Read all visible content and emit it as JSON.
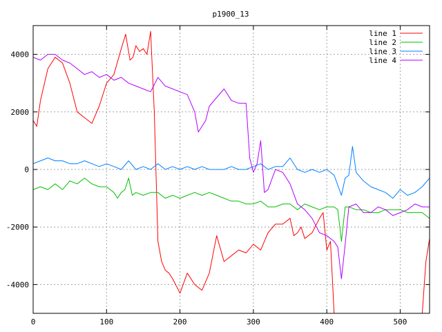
{
  "chart_data": {
    "type": "line",
    "title": "p1900_13",
    "xlabel": "",
    "ylabel": "",
    "xlim": [
      0,
      540
    ],
    "ylim": [
      -5000,
      5000
    ],
    "xticks": [
      0,
      100,
      200,
      300,
      400,
      500
    ],
    "yticks": [
      -4000,
      -2000,
      0,
      2000,
      4000
    ],
    "grid": true,
    "legend_position": "top-right",
    "series": [
      {
        "name": "line 1",
        "color": "#ff0000",
        "x": [
          0,
          5,
          10,
          20,
          30,
          40,
          50,
          60,
          70,
          80,
          90,
          100,
          110,
          120,
          126,
          132,
          136,
          140,
          145,
          150,
          155,
          160,
          165,
          170,
          175,
          180,
          185,
          190,
          200,
          210,
          220,
          230,
          240,
          250,
          260,
          270,
          280,
          290,
          300,
          310,
          320,
          330,
          340,
          350,
          355,
          360,
          365,
          370,
          380,
          390,
          395,
          400,
          405,
          410,
          420,
          430,
          440,
          450,
          460,
          470,
          480,
          490,
          500,
          510,
          520,
          530,
          535,
          540
        ],
        "y": [
          1700,
          1500,
          2400,
          3500,
          3900,
          3700,
          3000,
          2000,
          1800,
          1600,
          2200,
          3000,
          3300,
          4200,
          4700,
          3800,
          3900,
          4300,
          4100,
          4200,
          4000,
          4800,
          2000,
          -2500,
          -3200,
          -3500,
          -3600,
          -3800,
          -4300,
          -3600,
          -4000,
          -4200,
          -3600,
          -2300,
          -3200,
          -3000,
          -2800,
          -2900,
          -2600,
          -2800,
          -2200,
          -1900,
          -1900,
          -1700,
          -2300,
          -2200,
          -2000,
          -2400,
          -2200,
          -1700,
          -1500,
          -2800,
          -2500,
          -5000,
          -5000,
          -5000,
          -5000,
          -5000,
          -5000,
          -5000,
          -5000,
          -5000,
          -5000,
          -5000,
          -5000,
          -5000,
          -3200,
          -2400
        ]
      },
      {
        "name": "line 2",
        "color": "#00c000",
        "x": [
          0,
          10,
          20,
          30,
          40,
          50,
          60,
          70,
          80,
          90,
          100,
          110,
          115,
          120,
          125,
          130,
          135,
          140,
          150,
          160,
          170,
          180,
          190,
          200,
          210,
          220,
          230,
          240,
          250,
          260,
          270,
          280,
          290,
          300,
          310,
          320,
          330,
          340,
          350,
          360,
          370,
          380,
          390,
          400,
          410,
          415,
          420,
          425,
          430,
          440,
          450,
          460,
          470,
          480,
          490,
          500,
          510,
          520,
          530,
          540
        ],
        "y": [
          -700,
          -600,
          -700,
          -500,
          -700,
          -400,
          -500,
          -300,
          -500,
          -600,
          -600,
          -800,
          -1000,
          -800,
          -700,
          -300,
          -900,
          -800,
          -900,
          -800,
          -800,
          -1000,
          -900,
          -1000,
          -900,
          -800,
          -900,
          -800,
          -900,
          -1000,
          -1100,
          -1100,
          -1200,
          -1200,
          -1100,
          -1300,
          -1300,
          -1200,
          -1200,
          -1400,
          -1200,
          -1300,
          -1400,
          -1300,
          -1300,
          -1400,
          -2500,
          -1300,
          -1300,
          -1400,
          -1400,
          -1500,
          -1500,
          -1400,
          -1400,
          -1400,
          -1500,
          -1500,
          -1500,
          -1700
        ]
      },
      {
        "name": "line 3",
        "color": "#0080ff",
        "x": [
          0,
          10,
          20,
          30,
          40,
          50,
          60,
          70,
          80,
          90,
          100,
          110,
          120,
          130,
          140,
          150,
          160,
          170,
          180,
          190,
          200,
          210,
          220,
          230,
          240,
          250,
          260,
          270,
          280,
          290,
          300,
          310,
          320,
          330,
          340,
          350,
          360,
          370,
          380,
          390,
          400,
          410,
          420,
          425,
          430,
          435,
          440,
          450,
          460,
          470,
          480,
          490,
          500,
          510,
          520,
          530,
          540
        ],
        "y": [
          200,
          300,
          400,
          300,
          300,
          200,
          200,
          300,
          200,
          100,
          200,
          100,
          0,
          300,
          0,
          100,
          0,
          200,
          0,
          100,
          0,
          100,
          0,
          100,
          0,
          0,
          0,
          100,
          0,
          0,
          100,
          200,
          0,
          100,
          100,
          400,
          0,
          -100,
          0,
          -100,
          0,
          -200,
          -900,
          -300,
          -200,
          800,
          -100,
          -400,
          -600,
          -700,
          -800,
          -1000,
          -700,
          -900,
          -800,
          -600,
          -300
        ]
      },
      {
        "name": "line 4",
        "color": "#b000ff",
        "x": [
          0,
          10,
          20,
          30,
          40,
          50,
          60,
          70,
          80,
          90,
          100,
          110,
          120,
          130,
          140,
          150,
          160,
          170,
          180,
          190,
          200,
          210,
          220,
          225,
          230,
          235,
          240,
          250,
          260,
          270,
          280,
          290,
          295,
          300,
          305,
          310,
          315,
          320,
          330,
          340,
          350,
          360,
          370,
          380,
          390,
          400,
          410,
          415,
          420,
          425,
          430,
          440,
          450,
          460,
          470,
          480,
          490,
          500,
          510,
          520,
          530,
          540
        ],
        "y": [
          3900,
          3800,
          4000,
          4000,
          3800,
          3700,
          3500,
          3300,
          3400,
          3200,
          3300,
          3100,
          3200,
          3000,
          2900,
          2800,
          2700,
          3200,
          2900,
          2800,
          2700,
          2600,
          2000,
          1300,
          1500,
          1700,
          2200,
          2500,
          2800,
          2400,
          2300,
          2300,
          400,
          -100,
          200,
          1000,
          -800,
          -700,
          0,
          -100,
          -500,
          -1200,
          -1400,
          -1700,
          -2200,
          -2300,
          -2500,
          -2700,
          -3800,
          -2600,
          -1300,
          -1200,
          -1500,
          -1500,
          -1300,
          -1400,
          -1600,
          -1500,
          -1400,
          -1200,
          -1300,
          -1300
        ]
      }
    ]
  }
}
